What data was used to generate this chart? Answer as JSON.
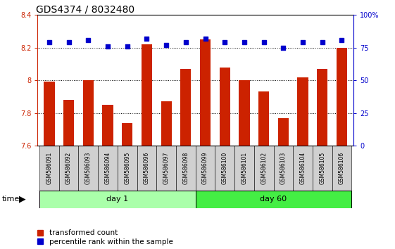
{
  "title": "GDS4374 / 8032480",
  "samples": [
    "GSM586091",
    "GSM586092",
    "GSM586093",
    "GSM586094",
    "GSM586095",
    "GSM586096",
    "GSM586097",
    "GSM586098",
    "GSM586099",
    "GSM586100",
    "GSM586101",
    "GSM586102",
    "GSM586103",
    "GSM586104",
    "GSM586105",
    "GSM586106"
  ],
  "bar_values": [
    7.99,
    7.88,
    8.0,
    7.85,
    7.74,
    8.22,
    7.87,
    8.07,
    8.25,
    8.08,
    8.0,
    7.93,
    7.77,
    8.02,
    8.07,
    8.2
  ],
  "dot_values": [
    79,
    79,
    81,
    76,
    76,
    82,
    77,
    79,
    82,
    79,
    79,
    79,
    75,
    79,
    79,
    81
  ],
  "bar_color": "#cc2200",
  "dot_color": "#0000cc",
  "ylim_left": [
    7.6,
    8.4
  ],
  "ylim_right": [
    0,
    100
  ],
  "yticks_left": [
    7.6,
    7.8,
    8.0,
    8.2,
    8.4
  ],
  "ytick_labels_left": [
    "7.6",
    "7.8",
    "8",
    "8.2",
    "8.4"
  ],
  "yticks_right": [
    0,
    25,
    50,
    75,
    100
  ],
  "ytick_labels_right": [
    "0",
    "25",
    "50",
    "75",
    "100%"
  ],
  "grid_values": [
    7.8,
    8.0,
    8.2
  ],
  "day1_label": "day 1",
  "day60_label": "day 60",
  "day1_color": "#aaffaa",
  "day60_color": "#44ee44",
  "legend_bar_label": "transformed count",
  "legend_dot_label": "percentile rank within the sample",
  "bar_width": 0.55,
  "tick_label_fontsize": 7,
  "title_fontsize": 10,
  "n_day1": 8,
  "n_day2": 8,
  "sample_bg": "#d0d0d0",
  "fig_bg": "#ffffff"
}
